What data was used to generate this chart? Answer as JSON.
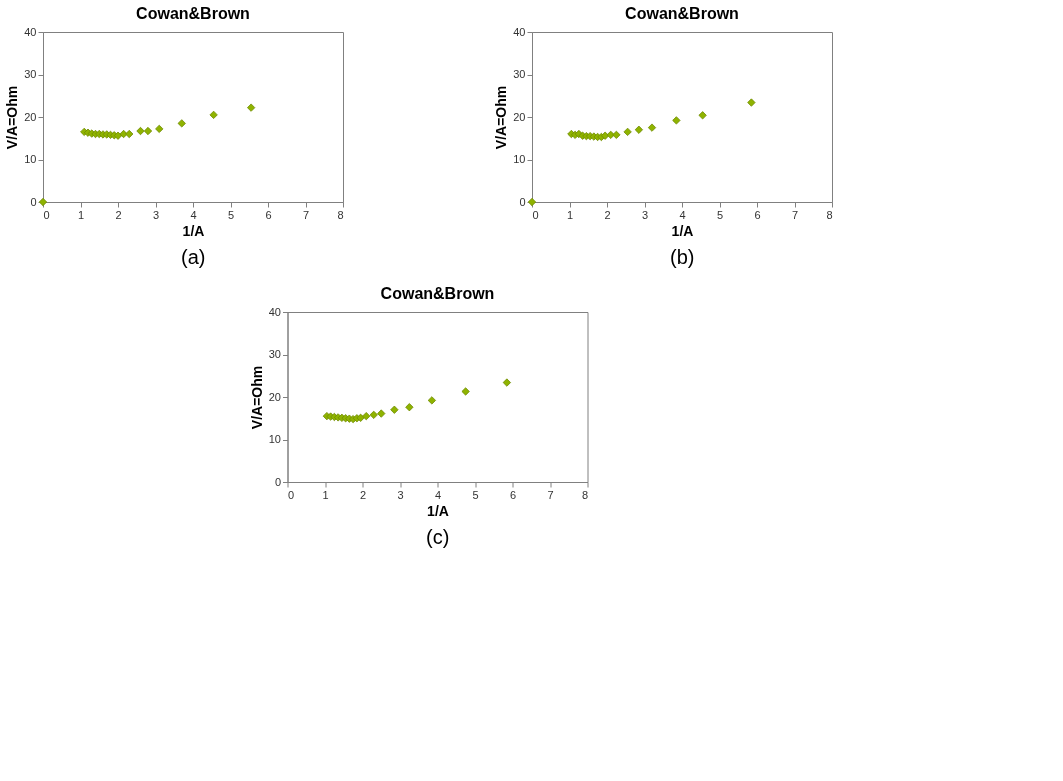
{
  "chart_data": [
    {
      "type": "scatter",
      "title": "Cowan&Brown",
      "xlabel": "1/A",
      "ylabel": "V/A=Ohm",
      "annotations": [
        "(a)"
      ],
      "xlim": [
        0,
        8
      ],
      "xticks": [
        0,
        1,
        2,
        3,
        4,
        5,
        6,
        7,
        8
      ],
      "ylim": [
        0,
        40
      ],
      "yticks": [
        0,
        10,
        20,
        30,
        40
      ],
      "grid": false,
      "marker": "diamond",
      "series": [
        {
          "color": "#8fb300",
          "x": [
            0,
            1.1,
            1.2,
            1.3,
            1.4,
            1.5,
            1.6,
            1.7,
            1.8,
            1.9,
            2.0,
            2.15,
            2.3,
            2.6,
            2.8,
            3.1,
            3.7,
            4.55,
            5.55
          ],
          "values": [
            0,
            16.5,
            16.3,
            16.1,
            16.0,
            16.0,
            15.9,
            15.9,
            15.8,
            15.7,
            15.6,
            16.0,
            16.0,
            16.7,
            16.7,
            17.2,
            18.5,
            20.5,
            22.2
          ]
        }
      ]
    },
    {
      "type": "scatter",
      "title": "Cowan&Brown",
      "xlabel": "1/A",
      "ylabel": "V/A=Ohm",
      "annotations": [
        "(b)"
      ],
      "xlim": [
        0,
        8
      ],
      "xticks": [
        0,
        1,
        2,
        3,
        4,
        5,
        6,
        7,
        8
      ],
      "ylim": [
        0,
        40
      ],
      "yticks": [
        0,
        10,
        20,
        30,
        40
      ],
      "grid": false,
      "marker": "diamond",
      "series": [
        {
          "color": "#8fb300",
          "x": [
            0,
            1.05,
            1.15,
            1.25,
            1.35,
            1.45,
            1.55,
            1.65,
            1.75,
            1.85,
            1.95,
            2.1,
            2.25,
            2.55,
            2.85,
            3.2,
            3.85,
            4.55,
            5.85
          ],
          "values": [
            0,
            16.0,
            15.8,
            16.0,
            15.6,
            15.5,
            15.5,
            15.4,
            15.3,
            15.3,
            15.6,
            15.8,
            15.8,
            16.5,
            17.0,
            17.5,
            19.2,
            20.4,
            23.4
          ]
        }
      ]
    },
    {
      "type": "scatter",
      "title": "Cowan&Brown",
      "xlabel": "1/A",
      "ylabel": "V/A=Ohm",
      "annotations": [
        "(c)"
      ],
      "xlim": [
        0,
        8
      ],
      "xticks": [
        0,
        1,
        2,
        3,
        4,
        5,
        6,
        7,
        8
      ],
      "ylim": [
        0,
        40
      ],
      "yticks": [
        0,
        10,
        20,
        30,
        40
      ],
      "grid": false,
      "marker": "diamond",
      "series": [
        {
          "color": "#8fb300",
          "x": [
            1.05,
            1.15,
            1.25,
            1.35,
            1.45,
            1.55,
            1.65,
            1.75,
            1.85,
            1.95,
            2.1,
            2.3,
            2.5,
            2.85,
            3.25,
            3.85,
            4.75,
            5.85
          ],
          "values": [
            15.5,
            15.4,
            15.3,
            15.2,
            15.1,
            15.0,
            14.9,
            14.8,
            15.0,
            15.1,
            15.5,
            15.8,
            16.1,
            17.0,
            17.6,
            19.2,
            21.3,
            23.4
          ]
        }
      ]
    }
  ]
}
